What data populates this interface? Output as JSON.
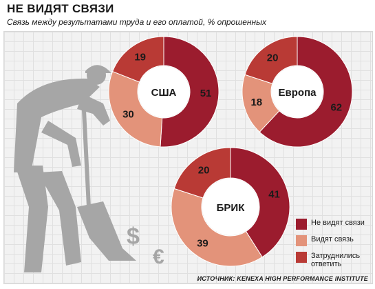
{
  "header": {
    "title": "НЕ ВИДЯТ СВЯЗИ",
    "subtitle": "Связь между результатами труда и его оплатой, % опрошенных"
  },
  "legend": {
    "items": [
      {
        "label": "Не видят связи",
        "color": "#9b1c2e"
      },
      {
        "label": "Видят связь",
        "color": "#e3937a"
      },
      {
        "label": "Затруднились ответить",
        "color": "#b93a35"
      }
    ]
  },
  "source": "ИСТОЧНИК: KENEXA HIGH PERFORMANCE INSTITUTE",
  "icons": [
    "worker-silhouette",
    "dollar-sign",
    "euro-sign"
  ],
  "chart_data": {
    "type": "pie",
    "donut": true,
    "categories": [
      "Не видят связи",
      "Видят связь",
      "Затруднились ответить"
    ],
    "colors": [
      "#9b1c2e",
      "#e3937a",
      "#b93a35"
    ],
    "series": [
      {
        "name": "США",
        "values": [
          51,
          30,
          19
        ]
      },
      {
        "name": "Европа",
        "values": [
          62,
          18,
          20
        ]
      },
      {
        "name": "БРИК",
        "values": [
          41,
          39,
          20
        ]
      }
    ]
  }
}
